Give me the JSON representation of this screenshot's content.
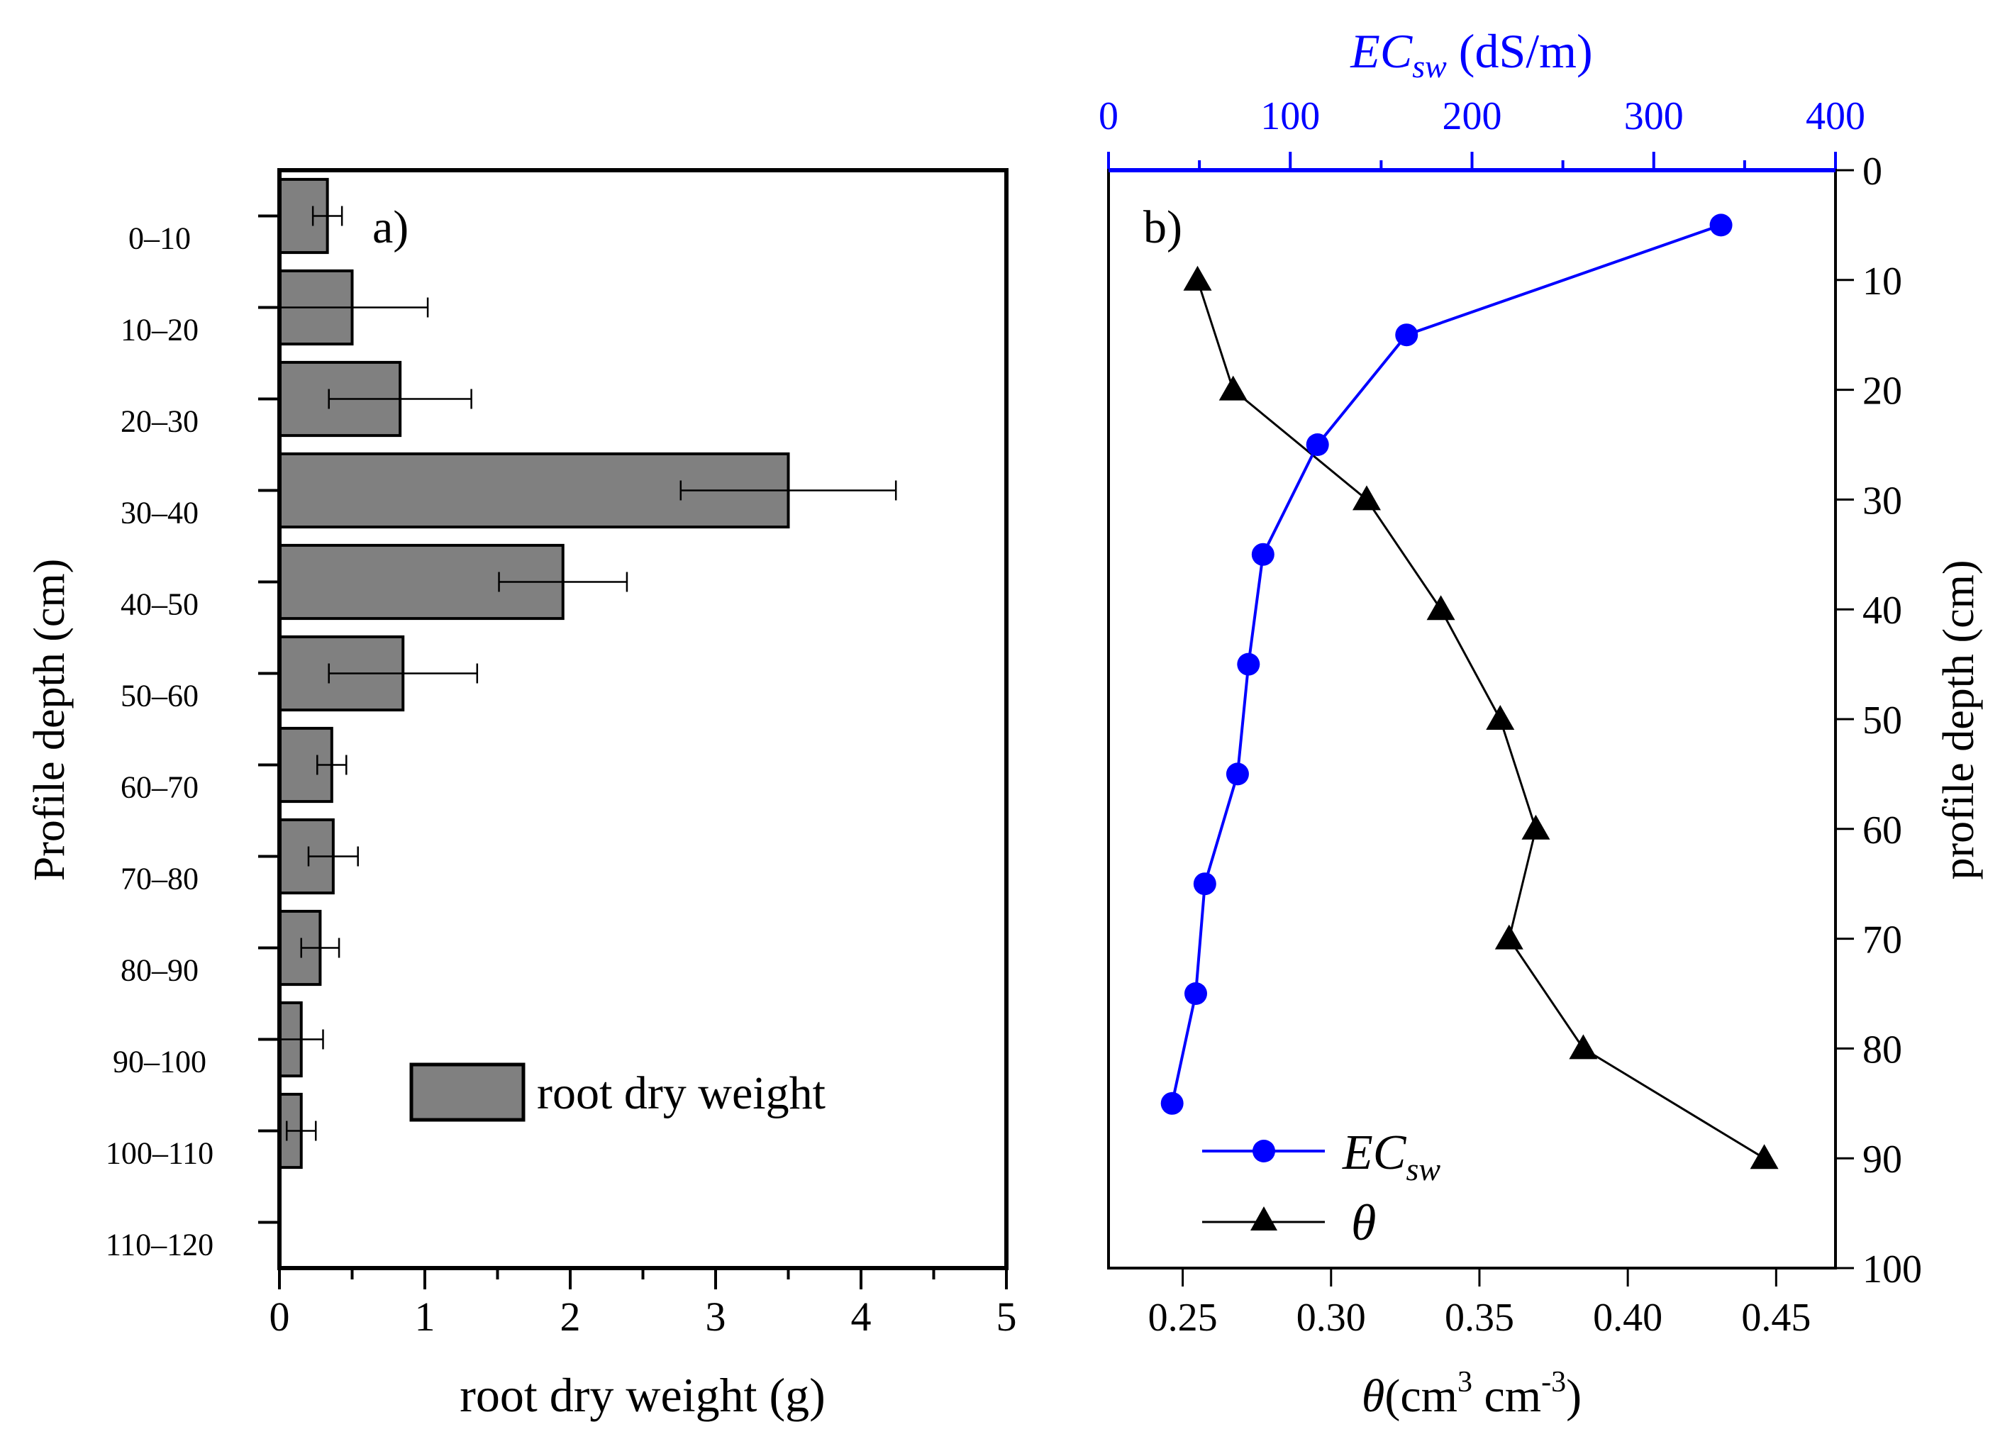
{
  "chart_data": [
    {
      "type": "bar",
      "orientation": "horizontal",
      "panel_label": "a)",
      "xlabel": "root dry weight (g)",
      "ylabel": "Profile depth (cm)",
      "xlim": [
        0,
        5
      ],
      "x_ticks": [
        "0",
        "1",
        "2",
        "3",
        "4",
        "5"
      ],
      "categories": [
        "0–10",
        "10–20",
        "20–30",
        "30–40",
        "40–50",
        "50–60",
        "60–70",
        "70–80",
        "80–90",
        "90–100",
        "100–110",
        "110–120"
      ],
      "values": [
        0.33,
        0.5,
        0.83,
        3.5,
        1.95,
        0.85,
        0.36,
        0.37,
        0.28,
        0.15,
        0.15,
        null
      ],
      "errors": [
        0.1,
        0.52,
        0.49,
        0.74,
        0.44,
        0.51,
        0.1,
        0.17,
        0.13,
        0.15,
        0.1,
        null
      ],
      "legend": "root dry weight",
      "colors": {
        "bar": "#808080",
        "stroke": "#000000"
      }
    },
    {
      "type": "line",
      "panel_label": "b)",
      "bottom_axis": {
        "label_symbol": "θ",
        "label_unit": "(cm",
        "label_sup1": "3",
        "label_mid": " cm",
        "label_sup2": "-3",
        "label_end": ")",
        "lim": [
          0.225,
          0.47
        ],
        "ticks": [
          0.25,
          0.3,
          0.35,
          0.4,
          0.45
        ],
        "tick_labels": [
          "0.25",
          "0.30",
          "0.35",
          "0.40",
          "0.45"
        ]
      },
      "top_axis": {
        "label_main": "EC",
        "label_sub": "sw",
        "label_unit": " (dS/m)",
        "lim": [
          0,
          400
        ],
        "ticks": [
          0,
          100,
          200,
          300,
          400
        ],
        "tick_labels": [
          "0",
          "100",
          "200",
          "300",
          "400"
        ],
        "color": "#0000ff"
      },
      "right_axis": {
        "label": "profile depth (cm)",
        "lim": [
          0,
          100
        ],
        "ticks": [
          0,
          10,
          20,
          30,
          40,
          50,
          60,
          70,
          80,
          90,
          100
        ],
        "tick_labels": [
          "0",
          "10",
          "20",
          "30",
          "40",
          "50",
          "60",
          "70",
          "80",
          "90",
          "100"
        ]
      },
      "series": [
        {
          "name": "ECsw",
          "legend_main": "EC",
          "legend_sub": "sw",
          "axis": "top",
          "marker": "circle",
          "color": "#0000ff",
          "x": [
            337,
            164,
            115,
            85,
            77,
            71,
            53,
            48,
            35
          ],
          "y": [
            5,
            15,
            25,
            35,
            45,
            55,
            65,
            75,
            85
          ]
        },
        {
          "name": "θ",
          "legend_main": "θ",
          "axis": "bottom",
          "marker": "triangle",
          "color": "#000000",
          "x": [
            0.255,
            0.267,
            0.312,
            0.337,
            0.357,
            0.369,
            0.36,
            0.385,
            0.446
          ],
          "y": [
            10,
            20,
            30,
            40,
            50,
            60,
            70,
            80,
            90
          ]
        }
      ]
    }
  ]
}
